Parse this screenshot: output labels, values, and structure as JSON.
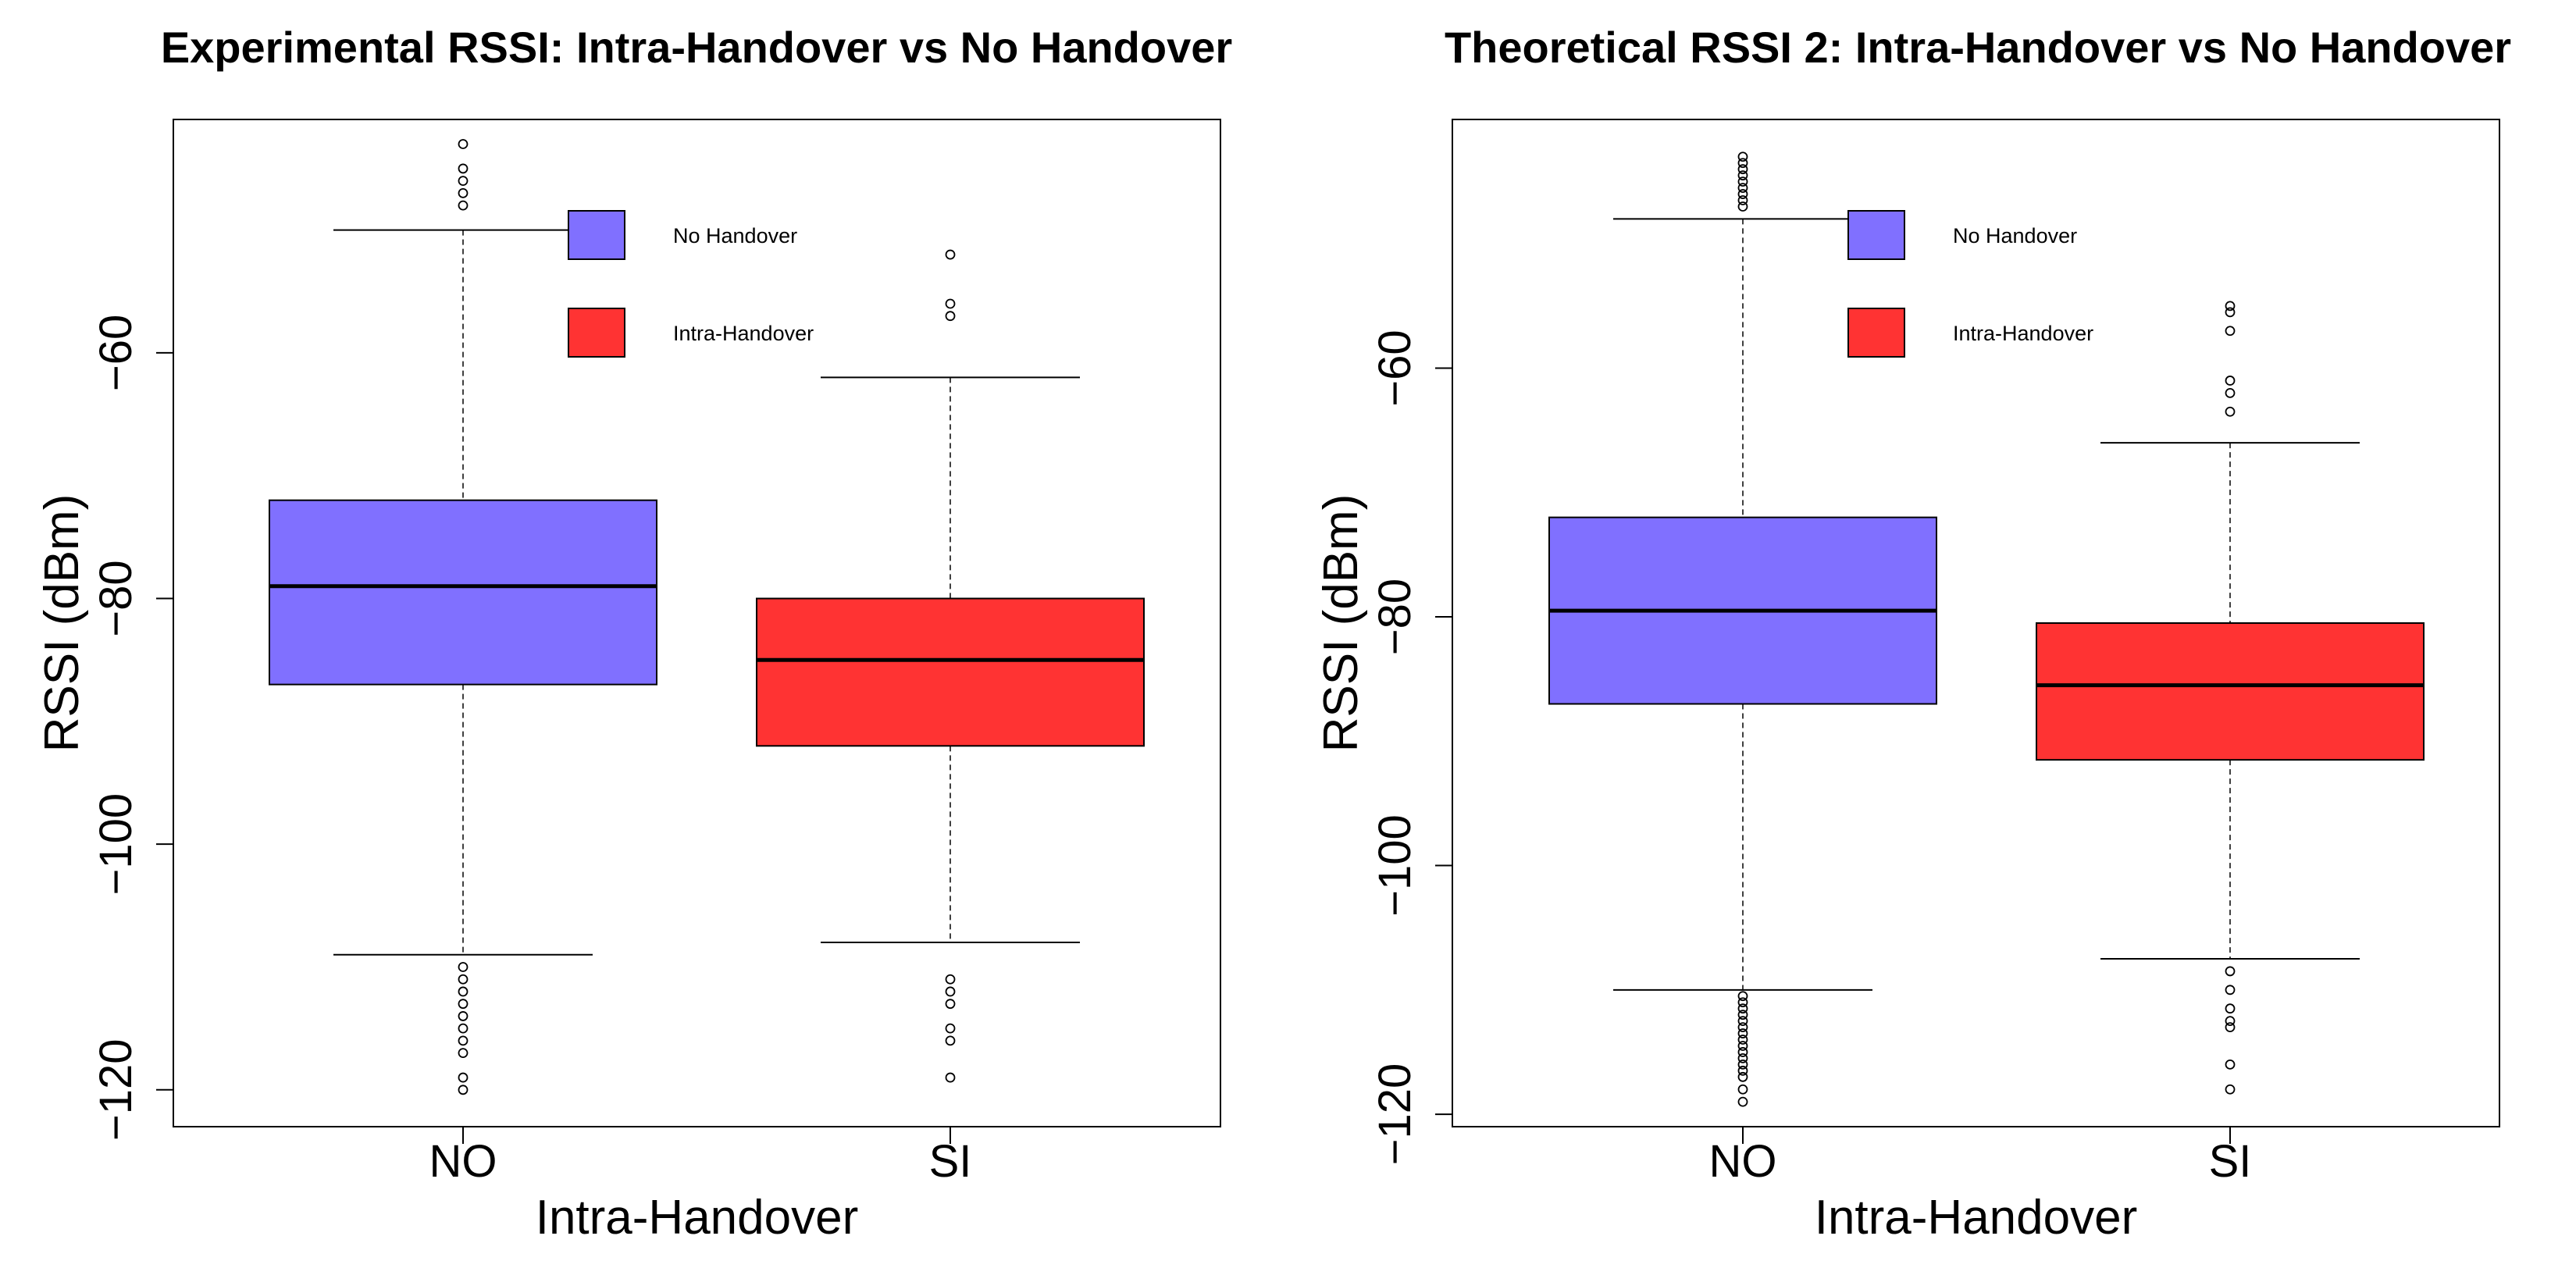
{
  "chart_data": [
    {
      "type": "boxplot",
      "title": "Experimental RSSI: Intra-Handover vs No Handover",
      "xlabel": "Intra-Handover",
      "ylabel": "RSSI (dBm)",
      "categories": [
        "NO",
        "SI"
      ],
      "ylim": [
        -123,
        -41
      ],
      "yticks": [
        -120,
        -100,
        -80,
        -60
      ],
      "ytick_labels": [
        "−120",
        "−100",
        "−80",
        "−60"
      ],
      "legend": {
        "position": "top-center",
        "entries": [
          {
            "label": "No Handover",
            "color": "#8070ff"
          },
          {
            "label": "Intra-Handover",
            "color": "#ff3333"
          }
        ]
      },
      "boxes": [
        {
          "category": "NO",
          "color": "#8070ff",
          "whisker_low": -109,
          "q1": -87,
          "median": -79,
          "q3": -72,
          "whisker_high": -50,
          "outliers": [
            -43,
            -45,
            -46,
            -47,
            -48,
            -110,
            -111,
            -112,
            -113,
            -114,
            -115,
            -116,
            -117,
            -119,
            -120
          ]
        },
        {
          "category": "SI",
          "color": "#ff3333",
          "whisker_low": -108,
          "q1": -92,
          "median": -85,
          "q3": -80,
          "whisker_high": -62,
          "outliers": [
            -52,
            -56,
            -57,
            -111,
            -112,
            -113,
            -115,
            -116,
            -119
          ]
        }
      ]
    },
    {
      "type": "boxplot",
      "title": "Theoretical RSSI 2: Intra-Handover vs No Handover",
      "xlabel": "Intra-Handover",
      "ylabel": "RSSI (dBm)",
      "categories": [
        "NO",
        "SI"
      ],
      "ylim": [
        -121,
        -40
      ],
      "yticks": [
        -120,
        -100,
        -80,
        -60
      ],
      "ytick_labels": [
        "−120",
        "−100",
        "−80",
        "−60"
      ],
      "legend": {
        "position": "top-center",
        "entries": [
          {
            "label": "No Handover",
            "color": "#8070ff"
          },
          {
            "label": "Intra-Handover",
            "color": "#ff3333"
          }
        ]
      },
      "boxes": [
        {
          "category": "NO",
          "color": "#8070ff",
          "whisker_low": -110,
          "q1": -87,
          "median": -79.5,
          "q3": -72,
          "whisker_high": -48,
          "outliers": [
            -43,
            -43.5,
            -44,
            -44.5,
            -45,
            -45.5,
            -46,
            -46.5,
            -47,
            -110.5,
            -111,
            -111.5,
            -112,
            -112.5,
            -113,
            -113.5,
            -114,
            -114.5,
            -115,
            -115.5,
            -116,
            -116.5,
            -117,
            -118,
            -119
          ]
        },
        {
          "category": "SI",
          "color": "#ff3333",
          "whisker_low": -107.5,
          "q1": -91.5,
          "median": -85.5,
          "q3": -80.5,
          "whisker_high": -66,
          "outliers": [
            -55,
            -55.5,
            -57,
            -61,
            -62,
            -63.5,
            -108.5,
            -110,
            -111.5,
            -112.5,
            -113,
            -116,
            -118
          ]
        }
      ]
    }
  ]
}
